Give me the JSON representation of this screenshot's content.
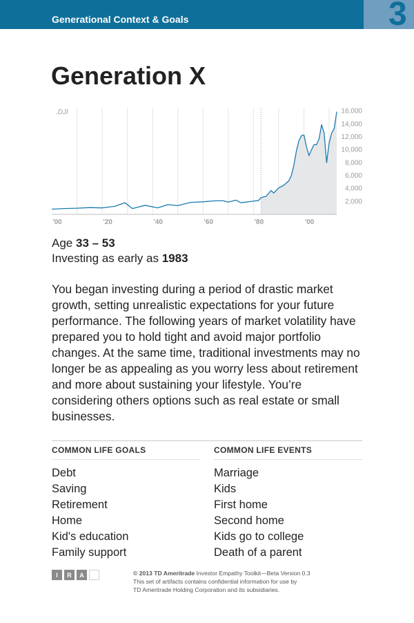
{
  "header": {
    "section_title": "Generational Context & Goals",
    "page_number": "3"
  },
  "title": "Generation X",
  "chart_data": {
    "type": "area",
    "title": ".DJI",
    "xlabel": "",
    "ylabel": "",
    "x_tick_labels": [
      "'00",
      "'20",
      "'40",
      "'60",
      "'80",
      "'00"
    ],
    "x_ticks": [
      1900,
      1920,
      1940,
      1960,
      1980,
      2000
    ],
    "y_ticks": [
      2000,
      4000,
      6000,
      8000,
      10000,
      12000,
      14000,
      16000
    ],
    "y_tick_labels": [
      "2,000",
      "4,000",
      "6,000",
      "8,000",
      "10,000",
      "12,000",
      "14,000",
      "16,000"
    ],
    "xlim": [
      1900,
      2013
    ],
    "ylim": [
      0,
      16500
    ],
    "grid": true,
    "shaded_from": 1983,
    "marker_x": 1983,
    "x": [
      1900,
      1905,
      1910,
      1915,
      1920,
      1925,
      1929,
      1932,
      1937,
      1942,
      1946,
      1950,
      1955,
      1960,
      1965,
      1968,
      1970,
      1973,
      1975,
      1980,
      1982,
      1983,
      1985,
      1987,
      1988,
      1990,
      1992,
      1994,
      1995,
      1996,
      1997,
      1998,
      1999,
      2000,
      2001,
      2002,
      2003,
      2004,
      2005,
      2006,
      2007,
      2008,
      2009,
      2010,
      2011,
      2012,
      2013
    ],
    "y": [
      800,
      900,
      950,
      1050,
      1000,
      1250,
      1800,
      900,
      1400,
      1000,
      1500,
      1350,
      1850,
      1950,
      2100,
      2100,
      1900,
      2200,
      1800,
      2050,
      2150,
      2600,
      2800,
      3700,
      3300,
      4100,
      4500,
      5200,
      6000,
      7600,
      9800,
      11400,
      12200,
      12300,
      10500,
      9100,
      10000,
      10800,
      10800,
      11700,
      13900,
      12600,
      8000,
      11100,
      12600,
      13300,
      15900
    ],
    "series": [
      {
        "name": ".DJI",
        "color": "#1a7bb0"
      }
    ]
  },
  "facts": {
    "age_label": "Age ",
    "age_value": "33 – 53",
    "investing_label": "Investing as early as ",
    "investing_value": "1983"
  },
  "description": "You began investing during a period of drastic market growth, setting unrealistic expectations for your future performance. The following years of market volatility have prepared you to hold tight and avoid major portfolio changes. At the same time, traditional investments may no longer be as appealing as you worry less about retirement and more about sustaining your lifestyle. You’re considering others options such as real estate or small businesses.",
  "goals": {
    "heading": "COMMON LIFE GOALS",
    "items": [
      "Debt",
      "Saving",
      "Retirement",
      "Home",
      "Kid's education",
      "Family support"
    ]
  },
  "events": {
    "heading": "COMMON LIFE EVENTS",
    "items": [
      "Marriage",
      "Kids",
      "First home",
      "Second home",
      "Kids go to college",
      "Death of a parent"
    ]
  },
  "footer": {
    "logo_letters": [
      "I",
      "R",
      "A",
      ""
    ],
    "copyright_bold": "© 2013 TD Ameritrade",
    "copyright_rest": " Investor Empathy Toolkit—Beta Version 0.3",
    "notice_line1": "This set of artifacts contains confidential information for use by",
    "notice_line2": "TD Ameritrade Holding Corporation and its subsidiaries."
  },
  "colors": {
    "header_bg": "#0e6f9a",
    "page_box_bg": "#6f9ec0",
    "line": "#1a7bb0",
    "area": "#e6e7e9"
  }
}
